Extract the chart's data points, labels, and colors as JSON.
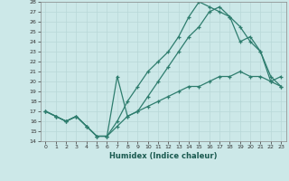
{
  "xlabel": "Humidex (Indice chaleur)",
  "bg_color": "#cce8e8",
  "line_color": "#2e7d6e",
  "grid_color": "#b8d8d8",
  "xlim": [
    -0.5,
    23.5
  ],
  "ylim": [
    14,
    28
  ],
  "yticks": [
    14,
    15,
    16,
    17,
    18,
    19,
    20,
    21,
    22,
    23,
    24,
    25,
    26,
    27,
    28
  ],
  "xticks": [
    0,
    1,
    2,
    3,
    4,
    5,
    6,
    7,
    8,
    9,
    10,
    11,
    12,
    13,
    14,
    15,
    16,
    17,
    18,
    19,
    20,
    21,
    22,
    23
  ],
  "line1_y": [
    17.0,
    16.5,
    16.0,
    16.5,
    15.5,
    14.5,
    14.5,
    16.0,
    18.0,
    19.5,
    21.0,
    22.0,
    23.0,
    24.5,
    26.5,
    28.0,
    27.5,
    27.0,
    26.5,
    25.5,
    24.0,
    23.0,
    20.0,
    19.5
  ],
  "line2_y": [
    17.0,
    16.5,
    16.0,
    16.5,
    15.5,
    14.5,
    14.5,
    20.5,
    16.5,
    17.0,
    18.5,
    20.0,
    21.5,
    23.0,
    24.5,
    25.5,
    27.0,
    27.5,
    26.5,
    24.0,
    24.5,
    23.0,
    20.5,
    19.5
  ],
  "line3_y": [
    17.0,
    16.5,
    16.0,
    16.5,
    15.5,
    14.5,
    14.5,
    15.5,
    16.5,
    17.0,
    17.5,
    18.0,
    18.5,
    19.0,
    19.5,
    19.5,
    20.0,
    20.5,
    20.5,
    21.0,
    20.5,
    20.5,
    20.0,
    20.5
  ]
}
